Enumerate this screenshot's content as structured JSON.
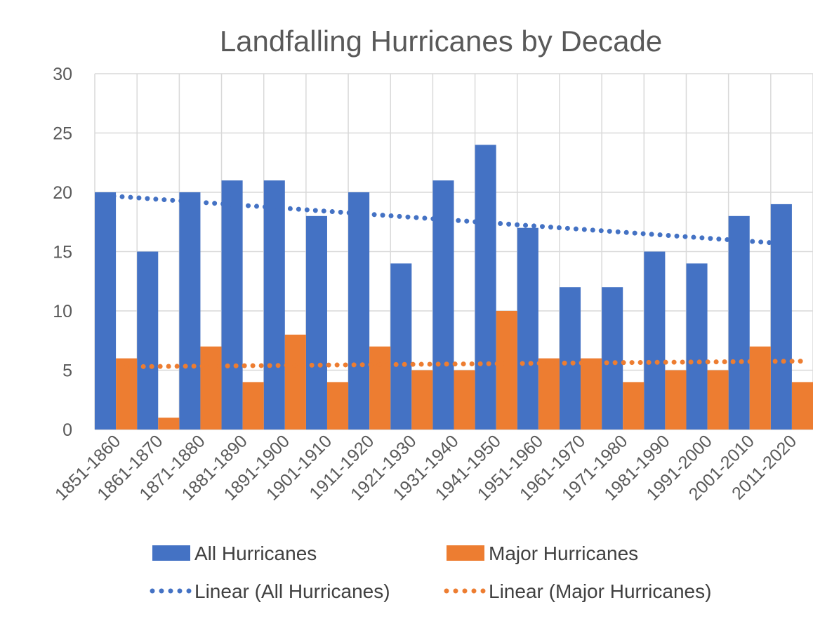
{
  "chart_data": {
    "type": "bar",
    "title": "Landfalling Hurricanes by Decade",
    "categories": [
      "1851-1860",
      "1861-1870",
      "1871-1880",
      "1881-1890",
      "1891-1900",
      "1901-1910",
      "1911-1920",
      "1921-1930",
      "1931-1940",
      "1941-1950",
      "1951-1960",
      "1961-1970",
      "1971-1980",
      "1981-1990",
      "1991-2000",
      "2001-2010",
      "2011-2020"
    ],
    "series": [
      {
        "name": "All Hurricanes",
        "color": "#4472C4",
        "values": [
          20,
          15,
          20,
          21,
          21,
          18,
          20,
          14,
          21,
          24,
          17,
          12,
          12,
          15,
          14,
          18,
          19
        ]
      },
      {
        "name": "Major Hurricanes",
        "color": "#ED7D31",
        "values": [
          6,
          1,
          7,
          4,
          8,
          4,
          7,
          5,
          5,
          10,
          6,
          6,
          4,
          5,
          5,
          7,
          4
        ]
      }
    ],
    "trendlines": [
      {
        "name": "Linear (All Hurricanes)",
        "type": "linear",
        "color": "#4472C4",
        "style": "dotted"
      },
      {
        "name": "Linear (Major Hurricanes)",
        "type": "linear",
        "color": "#ED7D31",
        "style": "dotted"
      }
    ],
    "ylim": [
      0,
      30
    ],
    "yticks": [
      0,
      5,
      10,
      15,
      20,
      25,
      30
    ],
    "grid": true,
    "legend_position": "bottom"
  }
}
